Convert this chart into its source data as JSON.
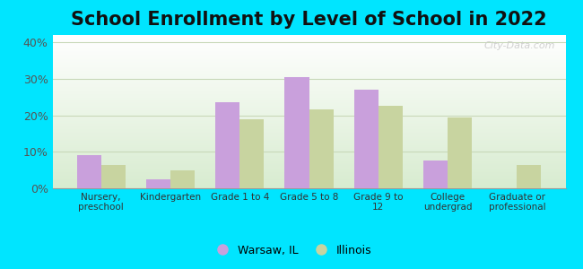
{
  "title": "School Enrollment by Level of School in 2022",
  "categories": [
    "Nursery,\npreschool",
    "Kindergarten",
    "Grade 1 to 4",
    "Grade 5 to 8",
    "Grade 9 to\n12",
    "College\nundergrad",
    "Graduate or\nprofessional"
  ],
  "warsaw_values": [
    9.0,
    2.5,
    23.5,
    30.5,
    27.0,
    7.5,
    0.0
  ],
  "illinois_values": [
    6.5,
    5.0,
    19.0,
    21.5,
    22.5,
    19.5,
    6.5
  ],
  "warsaw_color": "#c9a0dc",
  "illinois_color": "#c8d4a0",
  "background_outer": "#00e5ff",
  "background_top": "#ffffff",
  "background_bottom": "#d8ecd0",
  "ylabel_ticks": [
    "0%",
    "10%",
    "20%",
    "30%",
    "40%"
  ],
  "ytick_values": [
    0,
    10,
    20,
    30,
    40
  ],
  "ylim": [
    0,
    42
  ],
  "title_fontsize": 15,
  "watermark_text": "City-Data.com",
  "legend_warsaw": "Warsaw, IL",
  "legend_illinois": "Illinois",
  "bar_width": 0.35,
  "grid_color": "#c8d8b8"
}
